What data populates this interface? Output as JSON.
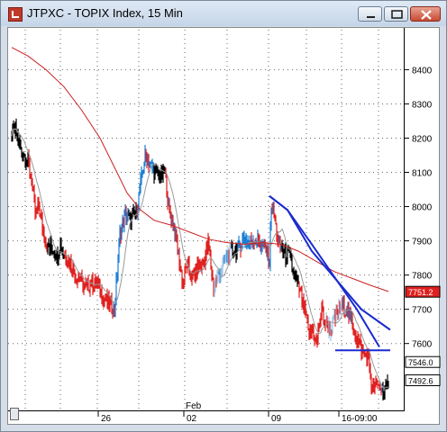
{
  "window": {
    "title": "JTPXC - TOPIX Index, 15 Min"
  },
  "chart_data": {
    "type": "line",
    "title": "JTPXC - TOPIX Index, 15 Min",
    "y_axis": {
      "ylim": [
        7402,
        8522
      ],
      "ticks": [
        7600,
        7700,
        7800,
        7900,
        8000,
        8100,
        8200,
        8300,
        8400
      ],
      "tick_labels": [
        "7600",
        "7700",
        "7800",
        "7900",
        "8000",
        "8100",
        "8200",
        "8300",
        "8400"
      ]
    },
    "x_axis": {
      "month_label": "Feb",
      "tick_labels": [
        "26",
        "02",
        "09",
        "16-09:00"
      ]
    },
    "grid": true,
    "series": [
      {
        "values": [
          7495,
          7488,
          7451,
          7460,
          7469,
          7478,
          7455,
          7482,
          7500,
          7460,
          7440,
          7463,
          7475
        ]
      },
      {
        "values": [
          7580,
          7580
        ]
      },
      {
        "values": [
          8031,
          7990,
          7890,
          7700,
          7590
        ]
      },
      {
        "values": [
          8031,
          7990,
          7870,
          7700,
          7640
        ]
      }
    ],
    "price_tags": [
      {
        "label": "7751.2",
        "color": "#e02020"
      },
      {
        "label": "7546.0",
        "color": "#ffffff"
      },
      {
        "label": "7492.6",
        "color": "#ffffff"
      }
    ]
  },
  "colors": {
    "up_bar": "#1a7fd6",
    "down_bar": "#e02020",
    "neutral_bar": "#000000",
    "slow_ma": "#cc2020",
    "fast_ma": "#9a9a9a",
    "trendline": "#1b2bd0"
  }
}
